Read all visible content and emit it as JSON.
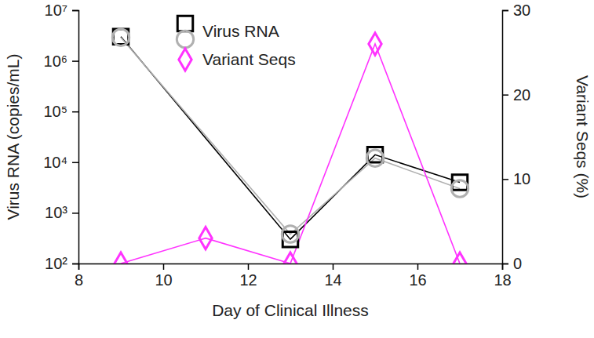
{
  "chart_data": {
    "type": "line",
    "x_label": "Day of Clinical Illness",
    "y_label": "Virus RNA (copies/mL)",
    "y2_label": "Variant Seqs (%)",
    "log": "y",
    "legend": "upper left",
    "xlim": [
      8,
      18
    ],
    "xticks": [
      8,
      10,
      12,
      14,
      16,
      18
    ],
    "ylim": [
      100,
      10000000
    ],
    "yticks": [
      {
        "value": 100,
        "label": "10²"
      },
      {
        "value": 1000,
        "label": "10³"
      },
      {
        "value": 10000,
        "label": "10⁴"
      },
      {
        "value": 100000,
        "label": "10⁵"
      },
      {
        "value": 1000000,
        "label": "10⁶"
      },
      {
        "value": 10000000,
        "label": "10⁷"
      }
    ],
    "y2lim": [
      0,
      30
    ],
    "y2ticks": [
      0,
      10,
      20,
      30
    ],
    "series": [
      {
        "name": "Virus RNA",
        "color": "#000000",
        "marker": "square",
        "x": [
          9,
          13,
          15,
          17
        ],
        "values": [
          3000000,
          300,
          14000,
          4000
        ]
      },
      {
        "color": "#b0b0b0",
        "marker": "circle",
        "x": [
          9,
          13,
          15,
          17
        ],
        "values": [
          2900000,
          380,
          12000,
          3000
        ]
      },
      {
        "name": "Variant Seqs",
        "color": "#ff33ff",
        "marker": "diamond",
        "axis": "y2",
        "x": [
          9,
          11,
          13,
          15,
          17
        ],
        "values": [
          0,
          3,
          0,
          26,
          0
        ]
      }
    ]
  }
}
